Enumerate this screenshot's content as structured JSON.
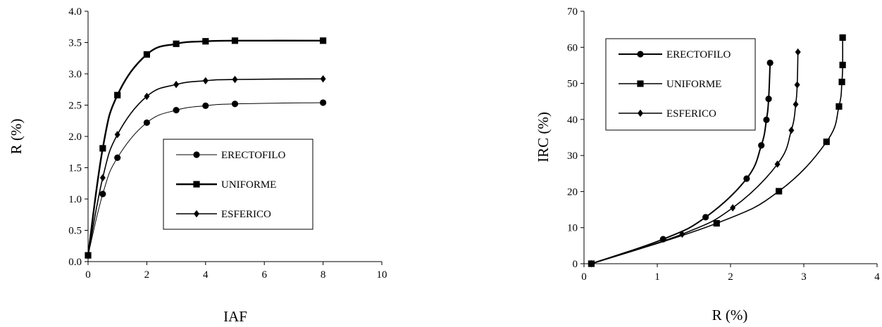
{
  "chart_data": [
    {
      "type": "line",
      "title": "",
      "xlabel": "IAF",
      "ylabel": "R (%)",
      "xlim": [
        0,
        10
      ],
      "ylim": [
        0,
        4
      ],
      "xticks": [
        "0",
        "2",
        "4",
        "6",
        "8",
        "10"
      ],
      "yticks": [
        "0.0",
        "0.5",
        "1.0",
        "1.5",
        "2.0",
        "2.5",
        "3.0",
        "3.5",
        "4.0"
      ],
      "grid": false,
      "legend_position": "center-right",
      "series": [
        {
          "name": "ERECTOFILO",
          "marker": "circle",
          "x": [
            0,
            0.5,
            1,
            2,
            3,
            4,
            5,
            8
          ],
          "y": [
            0.1,
            1.08,
            1.66,
            2.22,
            2.42,
            2.49,
            2.52,
            2.54
          ]
        },
        {
          "name": "UNIFORME",
          "marker": "square",
          "x": [
            0,
            0.5,
            1,
            2,
            3,
            4,
            5,
            8
          ],
          "y": [
            0.1,
            1.81,
            2.66,
            3.31,
            3.48,
            3.52,
            3.53,
            3.53
          ]
        },
        {
          "name": "ESFERICO",
          "marker": "diamond",
          "x": [
            0,
            0.5,
            1,
            2,
            3,
            4,
            5,
            8
          ],
          "y": [
            0.1,
            1.34,
            2.03,
            2.64,
            2.83,
            2.89,
            2.91,
            2.92
          ]
        }
      ]
    },
    {
      "type": "line",
      "title": "",
      "xlabel": "R (%)",
      "ylabel": "IRC (%)",
      "xlim": [
        0,
        4
      ],
      "ylim": [
        0,
        70
      ],
      "xticks": [
        "0",
        "1",
        "2",
        "3",
        "4"
      ],
      "yticks": [
        "0",
        "10",
        "20",
        "30",
        "40",
        "50",
        "60",
        "70"
      ],
      "grid": false,
      "legend_position": "top-left",
      "series": [
        {
          "name": "ERECTOFILO",
          "marker": "circle",
          "x": [
            0.1,
            1.08,
            1.66,
            2.22,
            2.42,
            2.49,
            2.52,
            2.54
          ],
          "y": [
            0,
            6.8,
            12.9,
            23.6,
            32.8,
            39.9,
            45.7,
            55.7
          ]
        },
        {
          "name": "UNIFORME",
          "marker": "square",
          "x": [
            0.1,
            1.81,
            2.66,
            3.31,
            3.48,
            3.52,
            3.53,
            3.53
          ],
          "y": [
            0,
            11.2,
            20.1,
            33.8,
            43.6,
            50.4,
            55.1,
            62.7
          ]
        },
        {
          "name": "ESFERICO",
          "marker": "diamond",
          "x": [
            0.1,
            1.34,
            2.03,
            2.64,
            2.83,
            2.89,
            2.91,
            2.92
          ],
          "y": [
            0,
            8.2,
            15.5,
            27.6,
            37.0,
            44.2,
            49.6,
            58.7
          ]
        }
      ]
    }
  ]
}
